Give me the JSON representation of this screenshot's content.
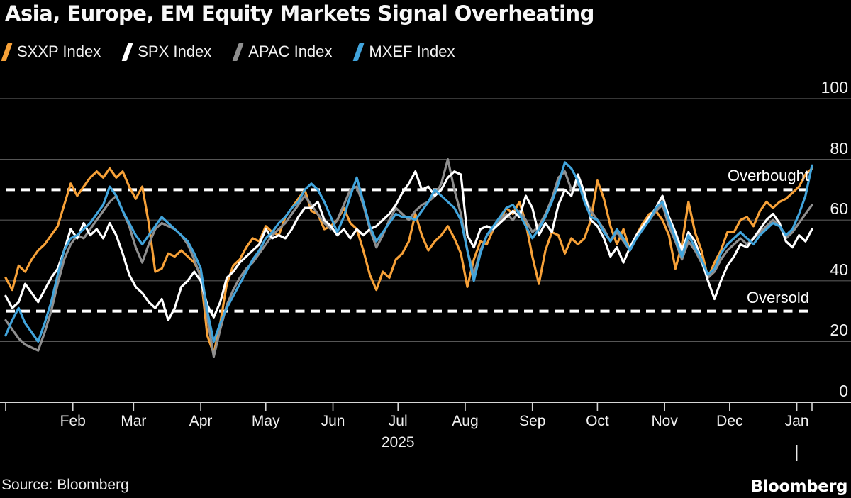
{
  "title": "Asia, Europe, EM Equity Markets Signal Overheating",
  "legend": [
    {
      "label": "SXXP Index",
      "color": "#f7a138"
    },
    {
      "label": "SPX Index",
      "color": "#ffffff"
    },
    {
      "label": "APAC Index",
      "color": "#8f8f8f"
    },
    {
      "label": "MXEF Index",
      "color": "#41a4dc"
    }
  ],
  "footer": {
    "source": "Source: Bloomberg",
    "logo": "Bloomberg"
  },
  "colors": {
    "background": "#000000",
    "gridline": "#565656",
    "axis": "#d6d6d6",
    "threshold": "#ffffff",
    "sxxp": "#f7a138",
    "spx": "#ffffff",
    "apac": "#8f8f8f",
    "mxef": "#41a4dc"
  },
  "chart_data": {
    "type": "line",
    "title": "Asia, Europe, EM Equity Markets Signal Overheating",
    "x_unit": "days since Jan 1, 2025",
    "x_range": [
      0,
      372
    ],
    "y_range": [
      0,
      100
    ],
    "y_ticks": [
      0,
      20,
      40,
      60,
      80,
      100
    ],
    "x_ticks": [
      {
        "t": 31,
        "label": "Feb"
      },
      {
        "t": 59,
        "label": "Mar"
      },
      {
        "t": 90,
        "label": "Apr"
      },
      {
        "t": 120,
        "label": "May"
      },
      {
        "t": 151,
        "label": "Jun"
      },
      {
        "t": 181,
        "label": "Jul"
      },
      {
        "t": 212,
        "label": "Aug"
      },
      {
        "t": 243,
        "label": "Sep"
      },
      {
        "t": 273,
        "label": "Oct"
      },
      {
        "t": 304,
        "label": "Nov"
      },
      {
        "t": 334,
        "label": "Dec"
      },
      {
        "t": 365,
        "label": "Jan"
      }
    ],
    "x_axis_year": "2025",
    "year_divider_t": 365,
    "legend_position": "top-left",
    "grid": "horizontal-only",
    "thresholds": [
      {
        "label": "Overbought",
        "value": 70
      },
      {
        "label": "Oversold",
        "value": 30
      }
    ],
    "series": [
      {
        "name": "SXXP Index",
        "color": "#f7a138",
        "t0": 0,
        "t_step": 3,
        "values": [
          41,
          37,
          45,
          43,
          47,
          50,
          52,
          55,
          58,
          65,
          72,
          68,
          71,
          74,
          76,
          74,
          77,
          74,
          76,
          71,
          67,
          71,
          59,
          43,
          44,
          49,
          48,
          50,
          48,
          46,
          42,
          22,
          16,
          26,
          39,
          45,
          47,
          51,
          54,
          53,
          58,
          56,
          55,
          61,
          64,
          67,
          70,
          63,
          62,
          57,
          58,
          60,
          64,
          59,
          57,
          50,
          42,
          37,
          43,
          41,
          47,
          49,
          53,
          62,
          55,
          50,
          53,
          55,
          58,
          54,
          49,
          38,
          47,
          53,
          52,
          57,
          60,
          64,
          62,
          66,
          59,
          48,
          39,
          50,
          56,
          55,
          49,
          54,
          52,
          54,
          60,
          73,
          67,
          58,
          52,
          57,
          50,
          55,
          59,
          62,
          63,
          60,
          55,
          44,
          52,
          66,
          56,
          50,
          41,
          46,
          50,
          56,
          56,
          60,
          61,
          58,
          63,
          66,
          64,
          66,
          67,
          69,
          71,
          75,
          77
        ]
      },
      {
        "name": "APAC Index",
        "color": "#8f8f8f",
        "t0": 0,
        "t_step": 3,
        "values": [
          27,
          24,
          21,
          19,
          18,
          17,
          23,
          30,
          39,
          47,
          52,
          55,
          54,
          57,
          60,
          63,
          66,
          68,
          63,
          58,
          51,
          46,
          52,
          57,
          59,
          58,
          57,
          55,
          52,
          47,
          41,
          28,
          15,
          24,
          32,
          37,
          41,
          44,
          46,
          49,
          52,
          55,
          57,
          59,
          62,
          65,
          68,
          65,
          62,
          59,
          57,
          60,
          65,
          70,
          71,
          65,
          57,
          51,
          55,
          60,
          64,
          62,
          60,
          63,
          65,
          66,
          68,
          72,
          80,
          70,
          62,
          50,
          42,
          50,
          55,
          57,
          60,
          62,
          60,
          63,
          60,
          56,
          58,
          62,
          67,
          74,
          76,
          70,
          72,
          68,
          63,
          60,
          57,
          53,
          56,
          53,
          50,
          54,
          57,
          60,
          63,
          65,
          58,
          53,
          47,
          53,
          50,
          46,
          41,
          43,
          47,
          50,
          52,
          54,
          52,
          54,
          56,
          58,
          60,
          58,
          54,
          56,
          59,
          62,
          65
        ]
      },
      {
        "name": "SPX Index",
        "color": "#ffffff",
        "t0": 0,
        "t_step": 3,
        "values": [
          35,
          31,
          33,
          39,
          36,
          33,
          37,
          41,
          44,
          50,
          57,
          54,
          59,
          55,
          57,
          54,
          59,
          55,
          49,
          42,
          38,
          36,
          33,
          31,
          34,
          27,
          31,
          38,
          40,
          43,
          40,
          32,
          28,
          33,
          41,
          43,
          46,
          48,
          50,
          52,
          57,
          54,
          55,
          54,
          57,
          61,
          64,
          64,
          66,
          60,
          58,
          55,
          57,
          54,
          57,
          55,
          57,
          58,
          60,
          62,
          65,
          69,
          72,
          76,
          70,
          71,
          68,
          70,
          74,
          76,
          75,
          55,
          51,
          57,
          58,
          57,
          59,
          61,
          63,
          61,
          68,
          64,
          55,
          59,
          56,
          65,
          70,
          68,
          75,
          69,
          60,
          58,
          54,
          48,
          51,
          46,
          51,
          55,
          58,
          61,
          64,
          68,
          61,
          56,
          50,
          56,
          53,
          47,
          40,
          34,
          40,
          45,
          48,
          52,
          51,
          54,
          57,
          60,
          62,
          59,
          53,
          51,
          55,
          53,
          57
        ]
      },
      {
        "name": "MXEF Index",
        "color": "#41a4dc",
        "t0": 0,
        "t_step": 3,
        "values": [
          22,
          27,
          31,
          26,
          23,
          20,
          26,
          33,
          42,
          50,
          54,
          55,
          57,
          59,
          62,
          65,
          71,
          68,
          63,
          59,
          55,
          52,
          55,
          58,
          61,
          59,
          57,
          55,
          53,
          49,
          44,
          30,
          20,
          26,
          31,
          35,
          39,
          43,
          47,
          50,
          54,
          56,
          59,
          61,
          64,
          66,
          70,
          72,
          70,
          66,
          61,
          56,
          61,
          68,
          74,
          66,
          58,
          53,
          56,
          59,
          62,
          61,
          61,
          60,
          63,
          66,
          70,
          68,
          66,
          64,
          60,
          50,
          40,
          49,
          55,
          58,
          61,
          64,
          65,
          62,
          58,
          54,
          57,
          61,
          66,
          72,
          79,
          77,
          73,
          66,
          61,
          60,
          56,
          53,
          57,
          54,
          50,
          54,
          57,
          60,
          64,
          66,
          60,
          54,
          48,
          55,
          51,
          47,
          42,
          44,
          49,
          52,
          54,
          56,
          54,
          52,
          55,
          57,
          59,
          58,
          55,
          57,
          62,
          68,
          78
        ]
      }
    ]
  }
}
